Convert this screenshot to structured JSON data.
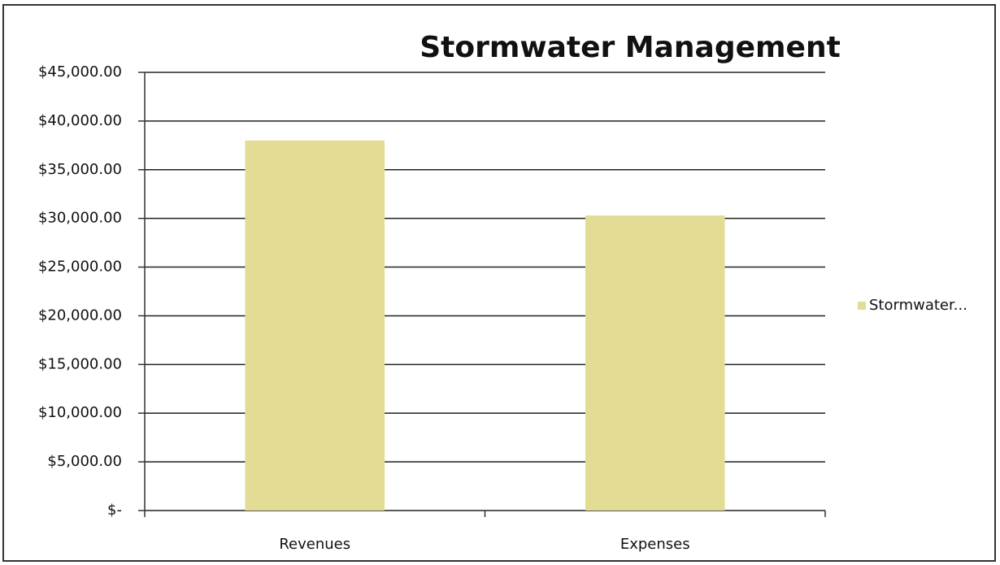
{
  "chart_data": {
    "type": "bar",
    "title": "Stormwater Management",
    "categories": [
      "Revenues",
      "Expenses"
    ],
    "series": [
      {
        "name": "Stormwater...",
        "color": "#e3dc95",
        "values": [
          38000,
          30300
        ]
      }
    ],
    "ylim": [
      0,
      45000
    ],
    "yticks": [
      {
        "value": 0,
        "label": "$-"
      },
      {
        "value": 5000,
        "label": "$5,000.00"
      },
      {
        "value": 10000,
        "label": "$10,000.00"
      },
      {
        "value": 15000,
        "label": "$15,000.00"
      },
      {
        "value": 20000,
        "label": "$20,000.00"
      },
      {
        "value": 25000,
        "label": "$25,000.00"
      },
      {
        "value": 30000,
        "label": "$30,000.00"
      },
      {
        "value": 35000,
        "label": "$35,000.00"
      },
      {
        "value": 40000,
        "label": "$40,000.00"
      },
      {
        "value": 45000,
        "label": "$45,000.00"
      }
    ],
    "grid": true,
    "legend": "right"
  }
}
